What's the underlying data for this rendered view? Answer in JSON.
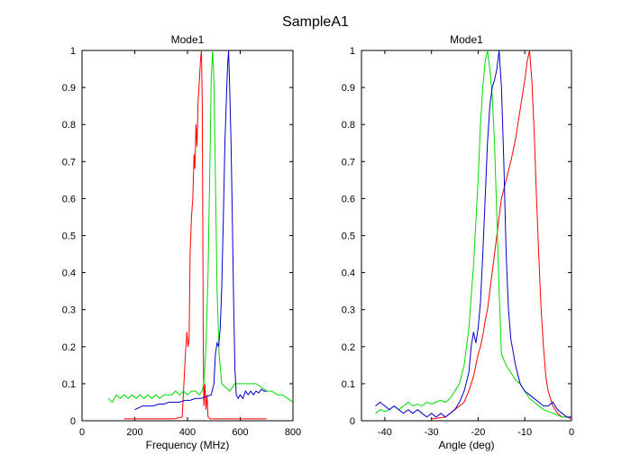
{
  "figure": {
    "title": "SampleA1"
  },
  "chart_data": [
    {
      "type": "line",
      "title": "Mode1",
      "xlabel": "Frequency (MHz)",
      "ylabel": "",
      "xlim": [
        0,
        800
      ],
      "ylim": [
        0,
        1
      ],
      "xticks": [
        "0",
        "200",
        "400",
        "600",
        "800"
      ],
      "yticks": [
        "0",
        "0.1",
        "0.2",
        "0.3",
        "0.4",
        "0.5",
        "0.6",
        "0.7",
        "0.8",
        "0.9",
        "1"
      ],
      "grid": false,
      "series": [
        {
          "name": "red",
          "color": "#ff0000",
          "points": [
            [
              160,
              0.005
            ],
            [
              350,
              0.005
            ],
            [
              380,
              0.01
            ],
            [
              385,
              0.08
            ],
            [
              392,
              0.18
            ],
            [
              398,
              0.24
            ],
            [
              402,
              0.2
            ],
            [
              406,
              0.22
            ],
            [
              410,
              0.45
            ],
            [
              415,
              0.55
            ],
            [
              420,
              0.6
            ],
            [
              425,
              0.72
            ],
            [
              428,
              0.68
            ],
            [
              432,
              0.8
            ],
            [
              436,
              0.74
            ],
            [
              440,
              0.86
            ],
            [
              445,
              0.92
            ],
            [
              450,
              0.98
            ],
            [
              453,
              1.0
            ],
            [
              456,
              0.85
            ],
            [
              458,
              0.5
            ],
            [
              460,
              0.2
            ],
            [
              462,
              0.04
            ],
            [
              466,
              0.1
            ],
            [
              470,
              0.03
            ],
            [
              474,
              0.07
            ],
            [
              478,
              0.01
            ],
            [
              485,
              0.005
            ],
            [
              700,
              0.005
            ]
          ]
        },
        {
          "name": "green",
          "color": "#00dd00",
          "points": [
            [
              100,
              0.06
            ],
            [
              115,
              0.05
            ],
            [
              130,
              0.07
            ],
            [
              145,
              0.06
            ],
            [
              160,
              0.07
            ],
            [
              175,
              0.06
            ],
            [
              190,
              0.07
            ],
            [
              205,
              0.06
            ],
            [
              220,
              0.07
            ],
            [
              235,
              0.06
            ],
            [
              250,
              0.07
            ],
            [
              265,
              0.06
            ],
            [
              280,
              0.07
            ],
            [
              295,
              0.06
            ],
            [
              310,
              0.07
            ],
            [
              325,
              0.07
            ],
            [
              340,
              0.07
            ],
            [
              355,
              0.08
            ],
            [
              370,
              0.07
            ],
            [
              385,
              0.08
            ],
            [
              400,
              0.07
            ],
            [
              415,
              0.08
            ],
            [
              430,
              0.08
            ],
            [
              445,
              0.07
            ],
            [
              455,
              0.08
            ],
            [
              462,
              0.1
            ],
            [
              470,
              0.2
            ],
            [
              478,
              0.4
            ],
            [
              485,
              0.7
            ],
            [
              490,
              0.92
            ],
            [
              495,
              1.0
            ],
            [
              500,
              0.92
            ],
            [
              506,
              0.65
            ],
            [
              512,
              0.35
            ],
            [
              520,
              0.18
            ],
            [
              530,
              0.1
            ],
            [
              545,
              0.09
            ],
            [
              560,
              0.08
            ],
            [
              580,
              0.1
            ],
            [
              600,
              0.1
            ],
            [
              620,
              0.1
            ],
            [
              640,
              0.1
            ],
            [
              660,
              0.1
            ],
            [
              680,
              0.09
            ],
            [
              700,
              0.08
            ],
            [
              720,
              0.08
            ],
            [
              740,
              0.07
            ],
            [
              760,
              0.07
            ],
            [
              780,
              0.06
            ],
            [
              800,
              0.05
            ]
          ]
        },
        {
          "name": "blue",
          "color": "#0000cc",
          "points": [
            [
              200,
              0.03
            ],
            [
              215,
              0.035
            ],
            [
              230,
              0.04
            ],
            [
              250,
              0.04
            ],
            [
              270,
              0.04
            ],
            [
              290,
              0.045
            ],
            [
              310,
              0.045
            ],
            [
              330,
              0.05
            ],
            [
              350,
              0.05
            ],
            [
              370,
              0.05
            ],
            [
              390,
              0.055
            ],
            [
              410,
              0.055
            ],
            [
              430,
              0.06
            ],
            [
              450,
              0.06
            ],
            [
              470,
              0.065
            ],
            [
              490,
              0.07
            ],
            [
              500,
              0.1
            ],
            [
              506,
              0.18
            ],
            [
              512,
              0.21
            ],
            [
              518,
              0.2
            ],
            [
              524,
              0.25
            ],
            [
              530,
              0.36
            ],
            [
              536,
              0.55
            ],
            [
              542,
              0.75
            ],
            [
              548,
              0.88
            ],
            [
              552,
              0.96
            ],
            [
              556,
              1.0
            ],
            [
              560,
              0.9
            ],
            [
              565,
              0.75
            ],
            [
              570,
              0.55
            ],
            [
              575,
              0.32
            ],
            [
              580,
              0.14
            ],
            [
              585,
              0.07
            ],
            [
              592,
              0.06
            ],
            [
              600,
              0.07
            ],
            [
              610,
              0.06
            ],
            [
              620,
              0.08
            ],
            [
              630,
              0.07
            ],
            [
              640,
              0.08
            ],
            [
              650,
              0.07
            ],
            [
              660,
              0.08
            ],
            [
              670,
              0.075
            ],
            [
              680,
              0.085
            ],
            [
              690,
              0.08
            ],
            [
              700,
              0.08
            ]
          ]
        }
      ]
    },
    {
      "type": "line",
      "title": "Mode1",
      "xlabel": "Angle (deg)",
      "ylabel": "",
      "xlim": [
        -45,
        0
      ],
      "ylim": [
        0,
        1
      ],
      "xticks": [
        "-40",
        "-30",
        "-20",
        "-10",
        "0"
      ],
      "yticks": [
        "0",
        "0.1",
        "0.2",
        "0.3",
        "0.4",
        "0.5",
        "0.6",
        "0.7",
        "0.8",
        "0.9",
        "1"
      ],
      "grid": false,
      "series": [
        {
          "name": "red",
          "color": "#ff0000",
          "points": [
            [
              -30,
              0.005
            ],
            [
              -27,
              0.01
            ],
            [
              -25,
              0.03
            ],
            [
              -23,
              0.05
            ],
            [
              -22,
              0.08
            ],
            [
              -21,
              0.12
            ],
            [
              -20.5,
              0.15
            ],
            [
              -20,
              0.18
            ],
            [
              -19.5,
              0.2
            ],
            [
              -19,
              0.23
            ],
            [
              -18.5,
              0.27
            ],
            [
              -18,
              0.3
            ],
            [
              -17.5,
              0.35
            ],
            [
              -17,
              0.4
            ],
            [
              -16.5,
              0.45
            ],
            [
              -16,
              0.5
            ],
            [
              -15.5,
              0.55
            ],
            [
              -15,
              0.6
            ],
            [
              -14,
              0.65
            ],
            [
              -13,
              0.7
            ],
            [
              -12,
              0.76
            ],
            [
              -11,
              0.84
            ],
            [
              -10,
              0.92
            ],
            [
              -9.5,
              0.97
            ],
            [
              -9,
              1.0
            ],
            [
              -8.5,
              0.92
            ],
            [
              -8,
              0.78
            ],
            [
              -7.5,
              0.6
            ],
            [
              -7,
              0.44
            ],
            [
              -6.5,
              0.3
            ],
            [
              -6,
              0.2
            ],
            [
              -5.5,
              0.12
            ],
            [
              -5,
              0.08
            ],
            [
              -4,
              0.04
            ],
            [
              -3,
              0.02
            ],
            [
              -2,
              0.01
            ],
            [
              -1,
              0.01
            ],
            [
              0,
              0.005
            ]
          ]
        },
        {
          "name": "green",
          "color": "#00dd00",
          "points": [
            [
              -42,
              0.02
            ],
            [
              -41,
              0.03
            ],
            [
              -40,
              0.025
            ],
            [
              -39,
              0.03
            ],
            [
              -38,
              0.04
            ],
            [
              -37,
              0.03
            ],
            [
              -36,
              0.04
            ],
            [
              -35,
              0.05
            ],
            [
              -34,
              0.04
            ],
            [
              -33,
              0.045
            ],
            [
              -32,
              0.04
            ],
            [
              -31,
              0.05
            ],
            [
              -30,
              0.045
            ],
            [
              -29,
              0.05
            ],
            [
              -28,
              0.055
            ],
            [
              -27,
              0.05
            ],
            [
              -26,
              0.06
            ],
            [
              -25,
              0.08
            ],
            [
              -24,
              0.1
            ],
            [
              -23,
              0.15
            ],
            [
              -22,
              0.25
            ],
            [
              -21,
              0.42
            ],
            [
              -20,
              0.65
            ],
            [
              -19.5,
              0.8
            ],
            [
              -19,
              0.9
            ],
            [
              -18.5,
              0.97
            ],
            [
              -18,
              1.0
            ],
            [
              -17.5,
              0.95
            ],
            [
              -17,
              0.88
            ],
            [
              -16.5,
              0.75
            ],
            [
              -16,
              0.55
            ],
            [
              -15.5,
              0.35
            ],
            [
              -15,
              0.18
            ],
            [
              -14,
              0.15
            ],
            [
              -13,
              0.13
            ],
            [
              -12,
              0.11
            ],
            [
              -11,
              0.1
            ],
            [
              -10,
              0.08
            ],
            [
              -9,
              0.06
            ],
            [
              -8,
              0.05
            ],
            [
              -7,
              0.04
            ],
            [
              -6,
              0.03
            ],
            [
              -5,
              0.025
            ],
            [
              -4,
              0.02
            ],
            [
              -3,
              0.015
            ],
            [
              -2,
              0.01
            ],
            [
              -1,
              0.01
            ],
            [
              0,
              0.01
            ]
          ]
        },
        {
          "name": "blue",
          "color": "#0000cc",
          "points": [
            [
              -42,
              0.04
            ],
            [
              -41,
              0.05
            ],
            [
              -40,
              0.04
            ],
            [
              -39,
              0.03
            ],
            [
              -38,
              0.04
            ],
            [
              -37,
              0.03
            ],
            [
              -36,
              0.02
            ],
            [
              -35,
              0.03
            ],
            [
              -34,
              0.02
            ],
            [
              -33,
              0.03
            ],
            [
              -32,
              0.02
            ],
            [
              -31,
              0.01
            ],
            [
              -30,
              0.02
            ],
            [
              -29,
              0.01
            ],
            [
              -28,
              0.02
            ],
            [
              -27,
              0.01
            ],
            [
              -26,
              0.02
            ],
            [
              -25,
              0.03
            ],
            [
              -24,
              0.05
            ],
            [
              -23,
              0.08
            ],
            [
              -22,
              0.13
            ],
            [
              -21.5,
              0.2
            ],
            [
              -21,
              0.24
            ],
            [
              -20.5,
              0.21
            ],
            [
              -20,
              0.25
            ],
            [
              -19.5,
              0.32
            ],
            [
              -19,
              0.45
            ],
            [
              -18.5,
              0.6
            ],
            [
              -18,
              0.75
            ],
            [
              -17.5,
              0.85
            ],
            [
              -17,
              0.9
            ],
            [
              -16.5,
              0.92
            ],
            [
              -16,
              0.95
            ],
            [
              -15.5,
              1.0
            ],
            [
              -15,
              0.9
            ],
            [
              -14.5,
              0.7
            ],
            [
              -14,
              0.45
            ],
            [
              -13.5,
              0.3
            ],
            [
              -13,
              0.22
            ],
            [
              -12,
              0.15
            ],
            [
              -11,
              0.1
            ],
            [
              -10,
              0.08
            ],
            [
              -9,
              0.07
            ],
            [
              -8,
              0.06
            ],
            [
              -7,
              0.05
            ],
            [
              -6,
              0.04
            ],
            [
              -5,
              0.04
            ],
            [
              -4,
              0.05
            ],
            [
              -3,
              0.03
            ],
            [
              -2,
              0.02
            ],
            [
              -1,
              0.01
            ],
            [
              0,
              0.01
            ]
          ]
        }
      ]
    }
  ]
}
